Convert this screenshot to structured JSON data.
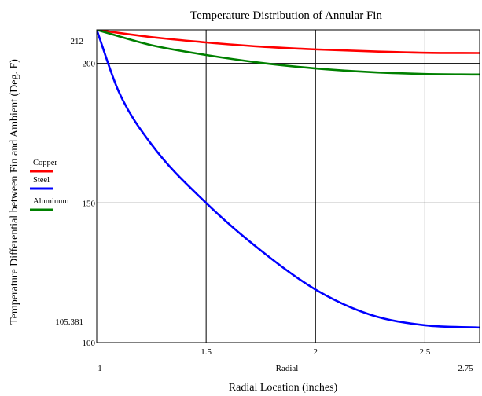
{
  "chart_data": {
    "type": "line",
    "title": "Temperature Distribution of Annular Fin",
    "xlabel": "Radial Location (inches)",
    "ylabel": "Temperature Differential between Fin and Ambient (Deg. F)",
    "x_range_caption": "Radial",
    "xlim": [
      1,
      2.75
    ],
    "ylim": [
      100,
      212
    ],
    "x_ticks": [
      "1.5",
      "2",
      "2.5"
    ],
    "x_min_label": "1",
    "x_max_label": "2.75",
    "y_ticks": [
      "200",
      "150",
      "100"
    ],
    "y_max_label": "212",
    "y_min_label": "105.381",
    "grid": true,
    "legend_position": "left",
    "series": [
      {
        "name": "Copper",
        "color": "#ff0000",
        "x": [
          1.0,
          1.25,
          1.5,
          1.75,
          2.0,
          2.25,
          2.5,
          2.75
        ],
        "y": [
          212,
          209.4,
          207.5,
          206.0,
          205.0,
          204.3,
          203.8,
          203.7
        ]
      },
      {
        "name": "Steel",
        "color": "#0000ff",
        "x": [
          1.0,
          1.1,
          1.25,
          1.5,
          1.75,
          2.0,
          2.25,
          2.5,
          2.75
        ],
        "y": [
          212,
          190,
          171,
          150,
          133,
          119,
          110,
          106.2,
          105.381
        ]
      },
      {
        "name": "Aluminum",
        "color": "#008000",
        "x": [
          1.0,
          1.25,
          1.5,
          1.75,
          2.0,
          2.25,
          2.5,
          2.75
        ],
        "y": [
          212,
          206.5,
          203.0,
          200.2,
          198.2,
          196.9,
          196.2,
          196.0
        ]
      }
    ]
  }
}
